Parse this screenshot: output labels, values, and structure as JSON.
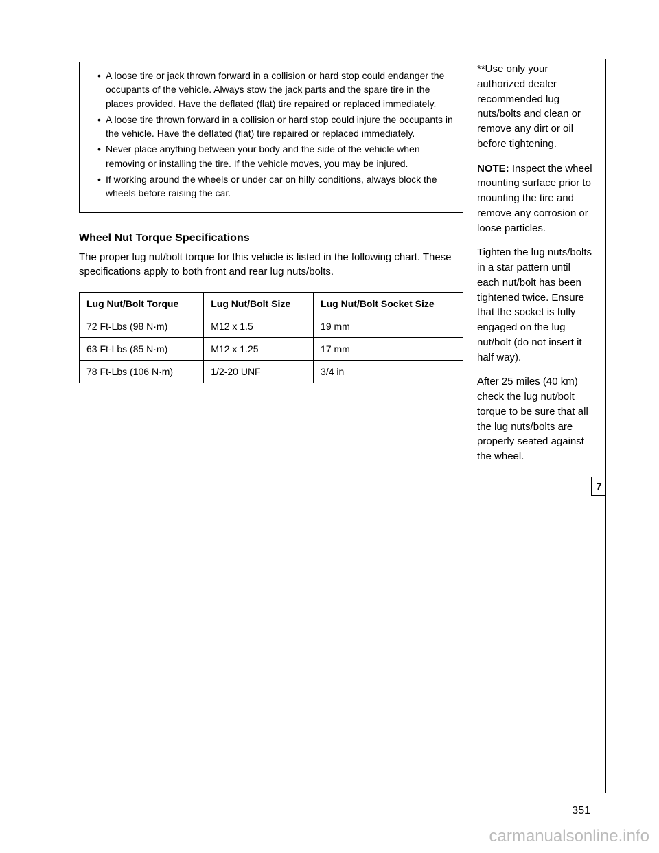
{
  "warning": {
    "items": [
      "A loose tire or jack thrown forward in a collision or hard stop could endanger the occupants of the vehicle. Always stow the jack parts and the spare tire in the places provided. Have the deflated (flat) tire repaired or replaced immediately.",
      "A loose tire thrown forward in a collision or hard stop could injure the occupants in the vehicle. Have the deflated (flat) tire repaired or replaced immediately.",
      "Never place anything between your body and the side of the vehicle when removing or installing the tire. If the vehicle moves, you may be injured.",
      "If working around the wheels or under car on hilly conditions, always block the wheels before raising the car."
    ]
  },
  "wheel_torque": {
    "heading": "Wheel Nut Torque Specifications",
    "intro": "The proper lug nut/bolt torque for this vehicle is listed in the following chart. These specifications apply to both front and rear lug nuts/bolts."
  },
  "torque_table": {
    "headers": [
      "Lug Nut/Bolt Torque",
      "Lug Nut/Bolt Size",
      "Lug Nut/Bolt Socket Size"
    ],
    "rows": [
      [
        "72 Ft-Lbs (98 N·m)",
        "M12 x 1.5",
        "19 mm"
      ],
      [
        "63 Ft-Lbs (85 N·m)",
        "M12 x 1.25",
        "17 mm"
      ],
      [
        "78 Ft-Lbs (106 N·m)",
        "1/2-20 UNF",
        "3/4 in"
      ]
    ]
  },
  "right_notes": {
    "note": "**Use only your authorized dealer recommended lug nuts/bolts and clean or remove any dirt or oil before tightening.",
    "p1": "NOTE:",
    "p2": "Inspect the wheel mounting surface prior to mounting the tire and remove any corrosion or loose particles.",
    "p3": "Tighten the lug nuts/bolts in a star pattern until each nut/bolt has been tightened twice. Ensure that the socket is fully engaged on the lug nut/bolt (do not insert it half way).",
    "p4": "After 25 miles (40 km) check the lug nut/bolt torque to be sure that all the lug nuts/bolts are properly seated against the wheel."
  },
  "page_number": "7",
  "footer": "351",
  "watermark": "carmanualsonline.info"
}
